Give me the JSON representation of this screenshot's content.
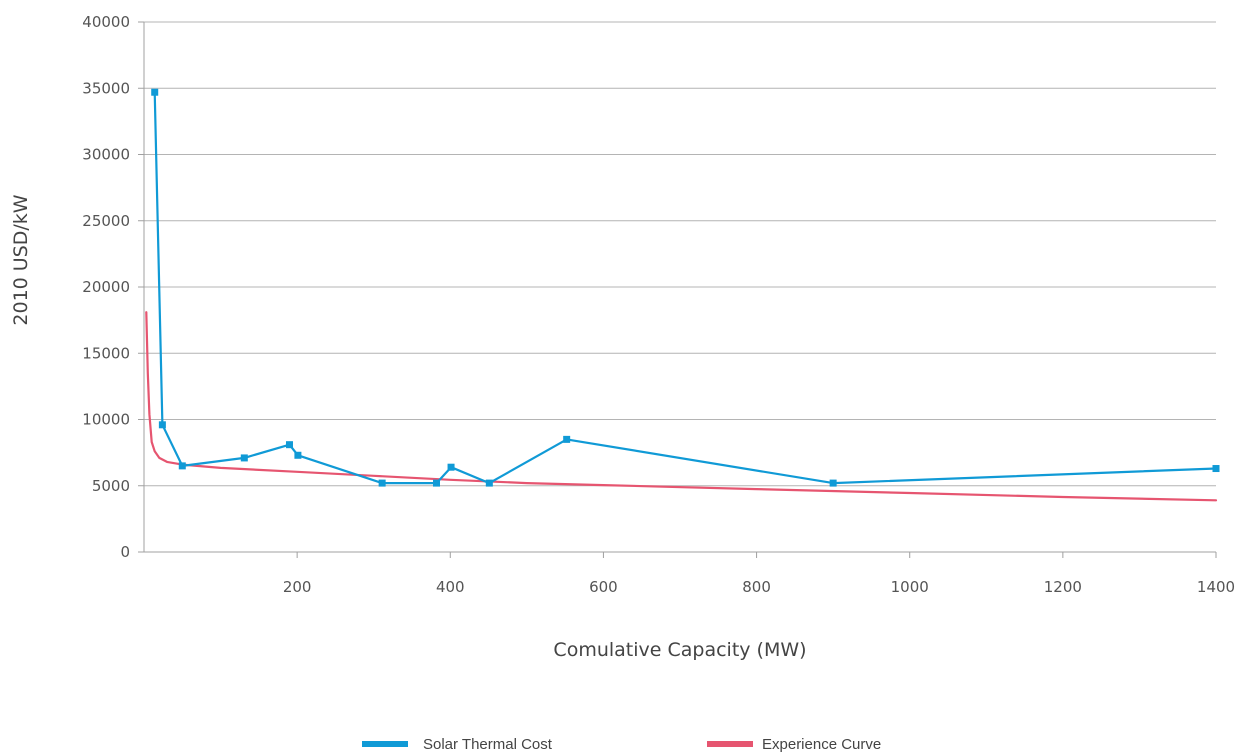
{
  "chart_data": {
    "type": "line",
    "title": "",
    "xlabel": "Comulative Capacity (MW)",
    "ylabel": "2010 USD/kW",
    "xlim": [
      0,
      1400
    ],
    "ylim": [
      0,
      40000
    ],
    "x_ticks": [
      200,
      400,
      600,
      800,
      1000,
      1200,
      1400
    ],
    "y_ticks": [
      0,
      5000,
      10000,
      15000,
      20000,
      25000,
      30000,
      35000,
      40000
    ],
    "grid": "horizontal",
    "legend_position": "bottom",
    "series": [
      {
        "name": "Solar Thermal Cost",
        "color": "#109ad6",
        "marker": "square",
        "points": [
          [
            14,
            34700
          ],
          [
            24,
            9600
          ],
          [
            50,
            6500
          ],
          [
            131,
            7100
          ],
          [
            190,
            8100
          ],
          [
            201,
            7300
          ],
          [
            311,
            5200
          ],
          [
            382,
            5200
          ],
          [
            401,
            6400
          ],
          [
            451,
            5200
          ],
          [
            552,
            8500
          ],
          [
            900,
            5200
          ],
          [
            1400,
            6300
          ]
        ]
      },
      {
        "name": "Experience Curve",
        "color": "#e65570",
        "marker": "none",
        "points": [
          [
            3,
            18100
          ],
          [
            5,
            13500
          ],
          [
            7,
            10400
          ],
          [
            10,
            8300
          ],
          [
            14,
            7600
          ],
          [
            20,
            7100
          ],
          [
            30,
            6800
          ],
          [
            50,
            6600
          ],
          [
            100,
            6350
          ],
          [
            200,
            6050
          ],
          [
            300,
            5750
          ],
          [
            400,
            5450
          ],
          [
            500,
            5200
          ],
          [
            600,
            5050
          ],
          [
            800,
            4750
          ],
          [
            1000,
            4450
          ],
          [
            1200,
            4150
          ],
          [
            1400,
            3900
          ]
        ]
      }
    ]
  }
}
